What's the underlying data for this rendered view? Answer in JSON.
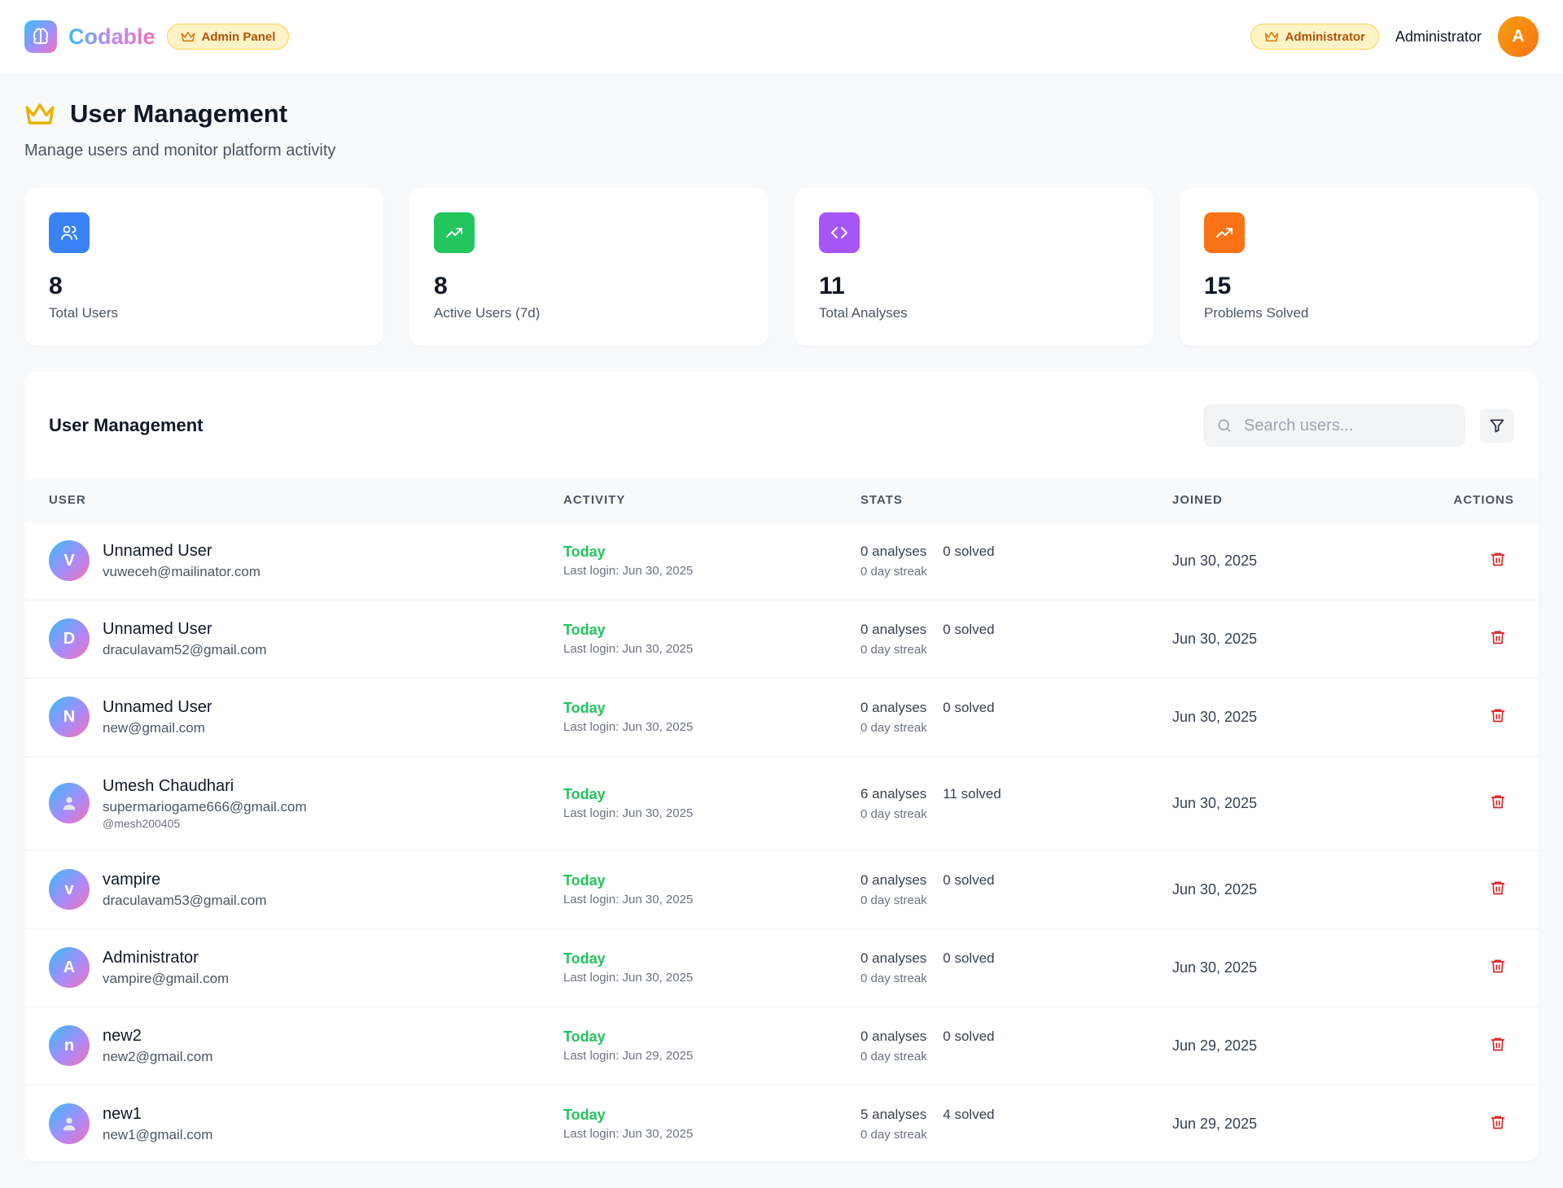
{
  "app": {
    "brand": "Codable",
    "admin_badge": "Admin Panel",
    "role_badge": "Administrator",
    "user_name": "Administrator",
    "user_initial": "A"
  },
  "page": {
    "title": "User Management",
    "subtitle": "Manage users and monitor platform activity"
  },
  "stats": [
    {
      "value": "8",
      "label": "Total Users",
      "icon": "users-icon",
      "color": "#3b82f6"
    },
    {
      "value": "8",
      "label": "Active Users (7d)",
      "icon": "trending-up-icon",
      "color": "#22c55e"
    },
    {
      "value": "11",
      "label": "Total Analyses",
      "icon": "code-icon",
      "color": "#a855f7"
    },
    {
      "value": "15",
      "label": "Problems Solved",
      "icon": "trending-up-icon",
      "color": "#f97316"
    }
  ],
  "table": {
    "title": "User Management",
    "search_placeholder": "Search users...",
    "columns": {
      "user": "USER",
      "activity": "ACTIVITY",
      "stats": "STATS",
      "joined": "JOINED",
      "actions": "ACTIONS"
    },
    "rows": [
      {
        "initial": "V",
        "name": "Unnamed User",
        "email": "vuweceh@mailinator.com",
        "activity": "Today",
        "last_login": "Last login: Jun 30, 2025",
        "analyses": "0 analyses",
        "solved": "0 solved",
        "streak": "0 day streak",
        "joined": "Jun 30, 2025"
      },
      {
        "initial": "D",
        "name": "Unnamed User",
        "email": "draculavam52@gmail.com",
        "activity": "Today",
        "last_login": "Last login: Jun 30, 2025",
        "analyses": "0 analyses",
        "solved": "0 solved",
        "streak": "0 day streak",
        "joined": "Jun 30, 2025"
      },
      {
        "initial": "N",
        "name": "Unnamed User",
        "email": "new@gmail.com",
        "activity": "Today",
        "last_login": "Last login: Jun 30, 2025",
        "analyses": "0 analyses",
        "solved": "0 solved",
        "streak": "0 day streak",
        "joined": "Jun 30, 2025"
      },
      {
        "initial": "",
        "name": "Umesh Chaudhari",
        "email": "supermariogame666@gmail.com",
        "handle": "@mesh200405",
        "activity": "Today",
        "last_login": "Last login: Jun 30, 2025",
        "analyses": "6 analyses",
        "solved": "11 solved",
        "streak": "0 day streak",
        "joined": "Jun 30, 2025"
      },
      {
        "initial": "v",
        "name": "vampire",
        "email": "draculavam53@gmail.com",
        "activity": "Today",
        "last_login": "Last login: Jun 30, 2025",
        "analyses": "0 analyses",
        "solved": "0 solved",
        "streak": "0 day streak",
        "joined": "Jun 30, 2025"
      },
      {
        "initial": "A",
        "name": "Administrator",
        "email": "vampire@gmail.com",
        "activity": "Today",
        "last_login": "Last login: Jun 30, 2025",
        "analyses": "0 analyses",
        "solved": "0 solved",
        "streak": "0 day streak",
        "joined": "Jun 30, 2025"
      },
      {
        "initial": "n",
        "name": "new2",
        "email": "new2@gmail.com",
        "activity": "Today",
        "last_login": "Last login: Jun 29, 2025",
        "analyses": "0 analyses",
        "solved": "0 solved",
        "streak": "0 day streak",
        "joined": "Jun 29, 2025"
      },
      {
        "initial": "",
        "name": "new1",
        "email": "new1@gmail.com",
        "activity": "Today",
        "last_login": "Last login: Jun 30, 2025",
        "analyses": "5 analyses",
        "solved": "4 solved",
        "streak": "0 day streak",
        "joined": "Jun 29, 2025"
      }
    ]
  }
}
